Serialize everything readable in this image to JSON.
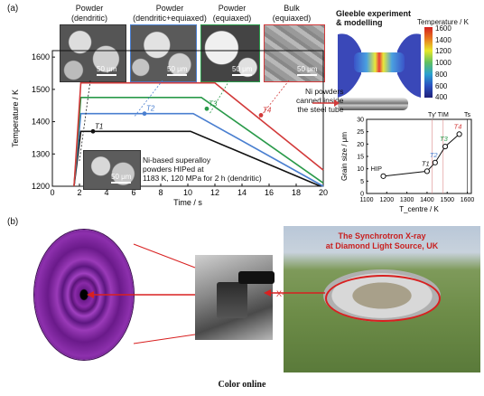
{
  "panel_a": {
    "label": "(a)",
    "micrographs": [
      {
        "title_line1": "Powder",
        "title_line2": "(dendritic)",
        "scale": "50 μm",
        "frame_color": "#222222"
      },
      {
        "title_line1": "Powder",
        "title_line2": "(dendritic+equiaxed)",
        "scale": "50 μm",
        "frame_color": "#4a7fd0"
      },
      {
        "title_line1": "Powder",
        "title_line2": "(equiaxed)",
        "scale": "50 μm",
        "frame_color": "#2a9a4a"
      },
      {
        "title_line1": "Bulk",
        "title_line2": "(equiaxed)",
        "scale": "50 μm",
        "frame_color": "#d23a3a"
      }
    ],
    "inset_text": [
      "Ni-based superalloy",
      "powders HIPed at",
      "1183 K, 120 MPa for 2 h (dendritic)"
    ],
    "inset_scale": "50 μm",
    "gleeble_title": [
      "Gleeble experiment",
      "& modelling"
    ],
    "colorbar_title": "Temperature / K",
    "colorbar_ticks": [
      "1600",
      "1400",
      "1200",
      "1000",
      "800",
      "600",
      "400"
    ],
    "tube_note": [
      "Ni powders",
      "canned inside",
      "the steel tube"
    ],
    "point_labels": [
      "T1",
      "T2",
      "T3",
      "T4"
    ]
  },
  "chart_data": [
    {
      "type": "line",
      "xlabel": "Time / s",
      "ylabel": "Temperature / K",
      "xlim": [
        0,
        20
      ],
      "ylim": [
        1200,
        1620
      ],
      "xticks": [
        0,
        2,
        4,
        6,
        8,
        10,
        12,
        14,
        16,
        18,
        20
      ],
      "yticks": [
        1200,
        1300,
        1400,
        1500,
        1600
      ],
      "series": [
        {
          "color": "#111111",
          "points": [
            [
              1.6,
              1200
            ],
            [
              2.1,
              1370
            ],
            [
              10.2,
              1370
            ],
            [
              19.8,
              1200
            ]
          ],
          "marker": [
            3.0,
            1370
          ],
          "marker_label": "T1"
        },
        {
          "color": "#4a7fd0",
          "points": [
            [
              1.6,
              1200
            ],
            [
              2.1,
              1425
            ],
            [
              10.4,
              1425
            ],
            [
              20.0,
              1200
            ]
          ],
          "marker": [
            6.8,
            1425
          ],
          "marker_label": "T2"
        },
        {
          "color": "#2a9a4a",
          "points": [
            [
              1.6,
              1200
            ],
            [
              2.1,
              1475
            ],
            [
              11.0,
              1475
            ],
            [
              20.0,
              1210
            ]
          ],
          "marker": [
            11.4,
            1440
          ],
          "marker_label": "T3"
        },
        {
          "color": "#d23a3a",
          "points": [
            [
              1.6,
              1200
            ],
            [
              2.1,
              1520
            ],
            [
              12.0,
              1520
            ],
            [
              20.0,
              1250
            ]
          ],
          "marker": [
            15.4,
            1420
          ],
          "marker_label": "T4"
        }
      ]
    },
    {
      "type": "scatter",
      "xlabel": "T_centre / K",
      "ylabel": "Grain size / μm",
      "xlim": [
        1100,
        1620
      ],
      "ylim": [
        0,
        30
      ],
      "xticks": [
        1100,
        1200,
        1300,
        1400,
        1500,
        1600
      ],
      "yticks": [
        0,
        5,
        10,
        15,
        20,
        25,
        30
      ],
      "points": [
        {
          "x": 1183,
          "y": 7,
          "label": "HIP"
        },
        {
          "x": 1400,
          "y": 9,
          "label": "T1"
        },
        {
          "x": 1440,
          "y": 12.5,
          "label": "T2"
        },
        {
          "x": 1490,
          "y": 19,
          "label": "T3"
        },
        {
          "x": 1560,
          "y": 24,
          "label": "T4"
        }
      ],
      "top_labels": [
        "Tγ'",
        "TIM",
        "Ts"
      ]
    }
  ],
  "panel_b": {
    "label": "(b)",
    "xray_label": "X-Ray",
    "synchrotron_title": [
      "The Synchrotron X-ray",
      "at Diamond Light Source, UK"
    ]
  },
  "caption": "Color online"
}
